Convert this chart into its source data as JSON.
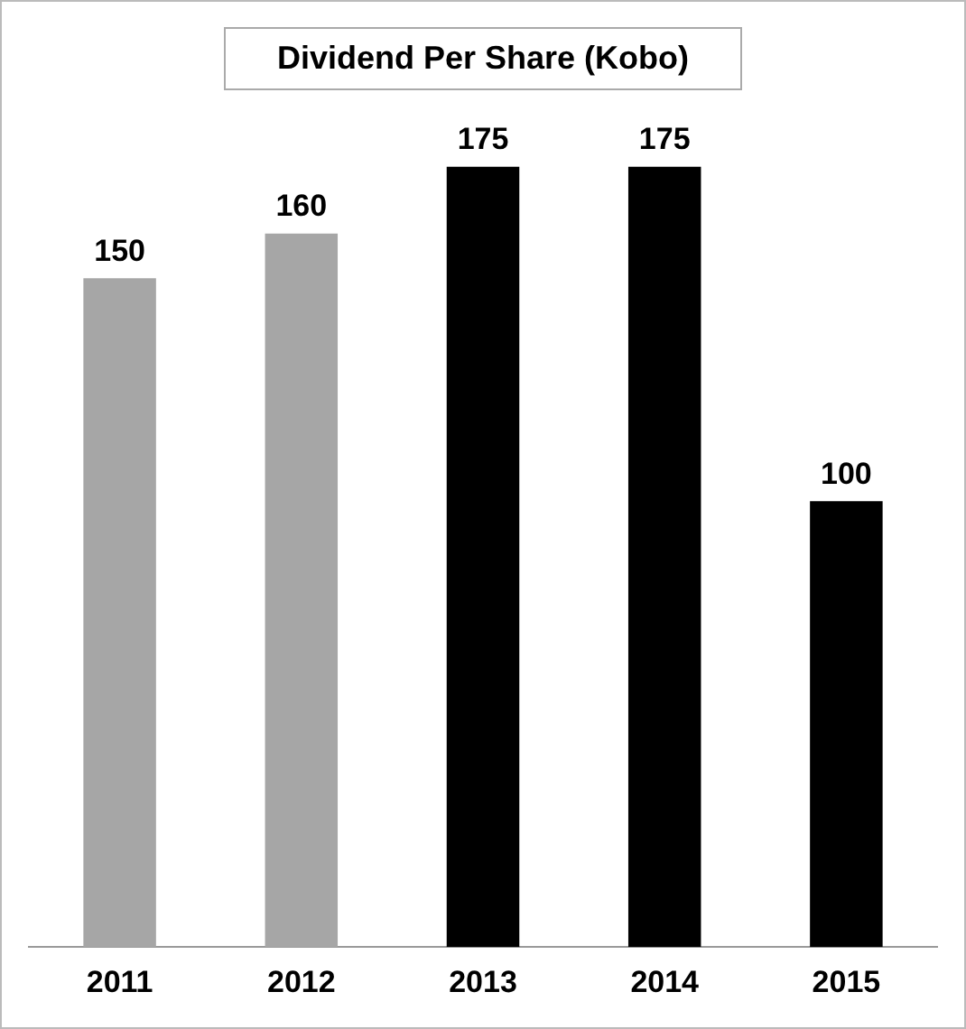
{
  "chart_data": {
    "type": "bar",
    "title": "Dividend Per Share (Kobo)",
    "categories": [
      "2011",
      "2012",
      "2013",
      "2014",
      "2015"
    ],
    "values": [
      150,
      160,
      175,
      175,
      100
    ],
    "colors": [
      "#a6a6a6",
      "#a6a6a6",
      "#000000",
      "#000000",
      "#000000"
    ],
    "data_labels": true,
    "grid": false,
    "legend": false
  }
}
